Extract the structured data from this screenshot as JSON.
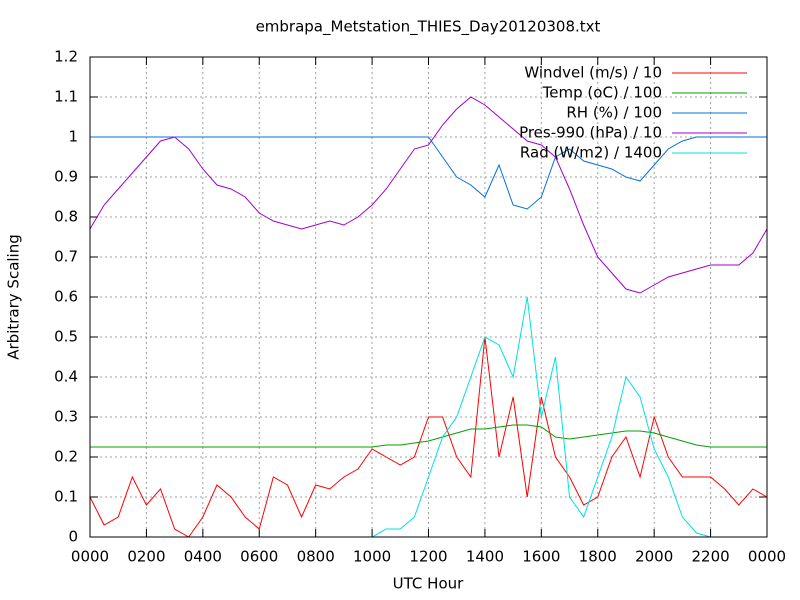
{
  "chart_data": {
    "type": "line",
    "title": "embrapa_Metstation_THIES_Day20120308.txt",
    "xlabel": "UTC Hour",
    "ylabel": "Arbitrary Scaling",
    "x": [
      0,
      0.5,
      1,
      1.5,
      2,
      2.5,
      3,
      3.5,
      4,
      4.5,
      5,
      5.5,
      6,
      6.5,
      7,
      7.5,
      8,
      8.5,
      9,
      9.5,
      10,
      10.5,
      11,
      11.5,
      12,
      12.5,
      13,
      13.5,
      14,
      14.5,
      15,
      15.5,
      16,
      16.5,
      17,
      17.5,
      18,
      18.5,
      19,
      19.5,
      20,
      20.5,
      21,
      21.5,
      22,
      22.5,
      23,
      23.5,
      24
    ],
    "series": [
      {
        "name": "Windvel (m/s) / 10",
        "color": "#ff0000",
        "values": [
          0.1,
          0.03,
          0.05,
          0.15,
          0.08,
          0.12,
          0.02,
          0,
          0.05,
          0.13,
          0.1,
          0.05,
          0.02,
          0.15,
          0.13,
          0.05,
          0.13,
          0.12,
          0.15,
          0.17,
          0.22,
          0.2,
          0.18,
          0.2,
          0.3,
          0.3,
          0.2,
          0.15,
          0.5,
          0.2,
          0.35,
          0.1,
          0.35,
          0.2,
          0.15,
          0.08,
          0.1,
          0.2,
          0.25,
          0.15,
          0.3,
          0.2,
          0.15,
          0.15,
          0.15,
          0.12,
          0.08,
          0.12,
          0.1
        ]
      },
      {
        "name": "Temp (oC) / 100",
        "color": "#00a000",
        "values": [
          0.225,
          0.225,
          0.225,
          0.225,
          0.225,
          0.225,
          0.225,
          0.225,
          0.225,
          0.225,
          0.225,
          0.225,
          0.225,
          0.225,
          0.225,
          0.225,
          0.225,
          0.225,
          0.225,
          0.225,
          0.225,
          0.23,
          0.23,
          0.235,
          0.24,
          0.25,
          0.26,
          0.27,
          0.27,
          0.275,
          0.28,
          0.28,
          0.275,
          0.25,
          0.245,
          0.25,
          0.255,
          0.26,
          0.265,
          0.265,
          0.26,
          0.25,
          0.24,
          0.23,
          0.225,
          0.225,
          0.225,
          0.225,
          0.225
        ]
      },
      {
        "name": "RH (%) / 100",
        "color": "#0070e0",
        "values": [
          1,
          1,
          1,
          1,
          1,
          1,
          1,
          1,
          1,
          1,
          1,
          1,
          1,
          1,
          1,
          1,
          1,
          1,
          1,
          1,
          1,
          1,
          1,
          1,
          1,
          0.95,
          0.9,
          0.88,
          0.85,
          0.93,
          0.83,
          0.82,
          0.85,
          0.95,
          0.97,
          0.94,
          0.93,
          0.92,
          0.9,
          0.89,
          0.93,
          0.97,
          0.99,
          1,
          1,
          1,
          1,
          1,
          1
        ]
      },
      {
        "name": "Pres-990 (hPa) / 10",
        "color": "#a000d0",
        "values": [
          0.77,
          0.83,
          0.87,
          0.91,
          0.95,
          0.99,
          1,
          0.97,
          0.92,
          0.88,
          0.87,
          0.85,
          0.81,
          0.79,
          0.78,
          0.77,
          0.78,
          0.79,
          0.78,
          0.8,
          0.83,
          0.87,
          0.92,
          0.97,
          0.98,
          1.03,
          1.07,
          1.1,
          1.08,
          1.05,
          1.02,
          0.99,
          0.98,
          0.95,
          0.87,
          0.78,
          0.7,
          0.66,
          0.62,
          0.61,
          0.63,
          0.65,
          0.66,
          0.67,
          0.68,
          0.68,
          0.68,
          0.71,
          0.77
        ]
      },
      {
        "name": "Rad (W/m2) / 1400",
        "color": "#00e0e0",
        "values": [
          0,
          0,
          0,
          0,
          0,
          0,
          0,
          0,
          0,
          0,
          0,
          0,
          0,
          0,
          0,
          0,
          0,
          0,
          0,
          0,
          0,
          0.02,
          0.02,
          0.05,
          0.15,
          0.25,
          0.3,
          0.4,
          0.5,
          0.48,
          0.4,
          0.6,
          0.3,
          0.45,
          0.1,
          0.05,
          0.15,
          0.25,
          0.4,
          0.35,
          0.22,
          0.15,
          0.05,
          0.01,
          0,
          0,
          0,
          0,
          0
        ]
      }
    ],
    "xlim": [
      0,
      24
    ],
    "xticks": [
      {
        "value": 0,
        "label": "0000"
      },
      {
        "value": 2,
        "label": "0200"
      },
      {
        "value": 4,
        "label": "0400"
      },
      {
        "value": 6,
        "label": "0600"
      },
      {
        "value": 8,
        "label": "0800"
      },
      {
        "value": 10,
        "label": "1000"
      },
      {
        "value": 12,
        "label": "1200"
      },
      {
        "value": 14,
        "label": "1400"
      },
      {
        "value": 16,
        "label": "1600"
      },
      {
        "value": 18,
        "label": "1800"
      },
      {
        "value": 20,
        "label": "2000"
      },
      {
        "value": 22,
        "label": "2200"
      },
      {
        "value": 24,
        "label": "0000"
      }
    ],
    "ylim": [
      0,
      1.2
    ],
    "yticks": [
      0,
      0.1,
      0.2,
      0.3,
      0.4,
      0.5,
      0.6,
      0.7,
      0.8,
      0.9,
      1,
      1.1,
      1.2
    ],
    "grid": true,
    "legend": "top-right"
  }
}
